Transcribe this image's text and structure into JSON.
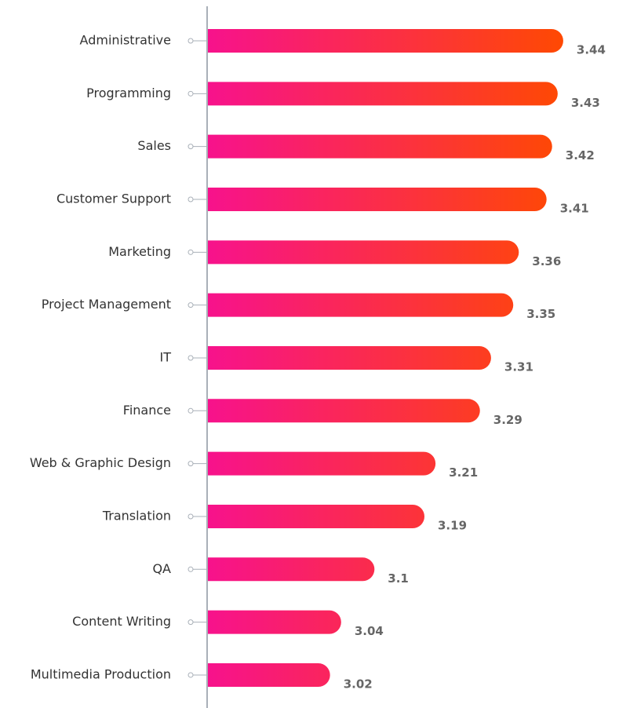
{
  "chart_data": {
    "type": "bar",
    "orientation": "horizontal",
    "categories": [
      "Administrative",
      "Programming",
      "Sales",
      "Customer Support",
      "Marketing",
      "Project Management",
      "IT",
      "Finance",
      "Web & Graphic Design",
      "Translation",
      "QA",
      "Content Writing",
      "Multimedia Production"
    ],
    "values": [
      3.44,
      3.43,
      3.42,
      3.41,
      3.36,
      3.35,
      3.31,
      3.29,
      3.21,
      3.19,
      3.1,
      3.04,
      3.02
    ],
    "colors": [
      "#f7128c",
      "#ff4a00"
    ],
    "xlim": [
      2.8,
      3.45
    ]
  }
}
